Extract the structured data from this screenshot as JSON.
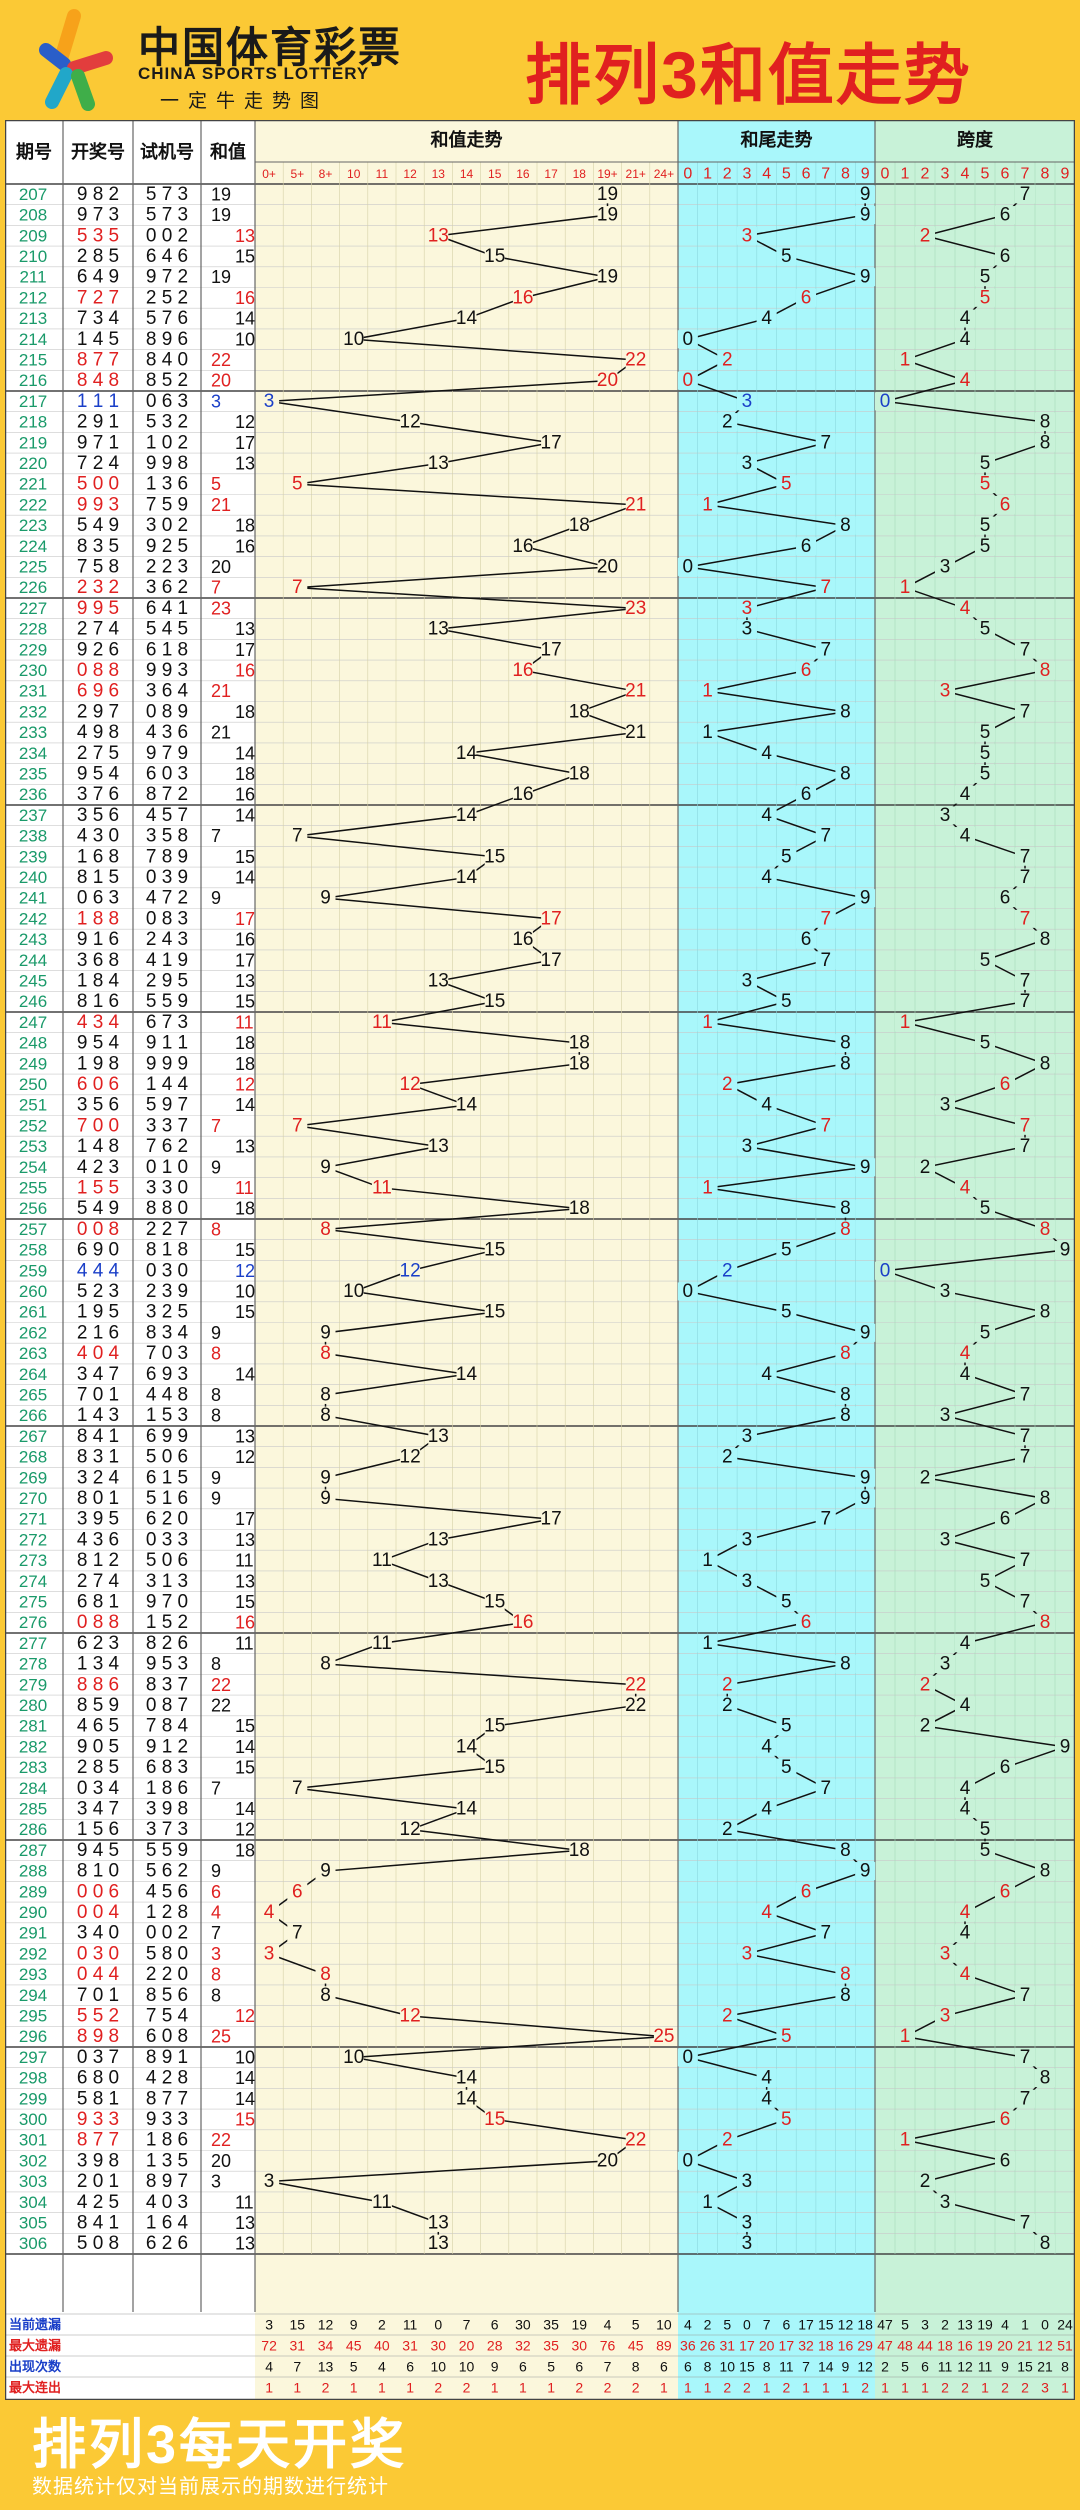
{
  "header": {
    "brand_cn": "中国体育彩票",
    "brand_en": "CHINA SPORTS LOTTERY",
    "brand_sub": "一定牛走势图",
    "title": "排列3和值走势"
  },
  "footer": {
    "title": "排列3每天开奖",
    "note": "数据统计仅对当前展示的期数进行统计"
  },
  "colors": {
    "red": "#e02020",
    "green": "#1a9a6a",
    "blue": "#1a3fc8",
    "header_yellow": "#fbc935",
    "sum_bg": "#fbf7dc",
    "tail_bg": "#a9f7fb",
    "span_bg": "#c8f2d8"
  },
  "chart_data": {
    "type": "table",
    "columns": {
      "period": "期号",
      "draw": "开奖号",
      "test": "试机号",
      "sum": "和值"
    },
    "sections": {
      "sum_trend": "和值走势",
      "tail_trend": "和尾走势",
      "span": "跨度"
    },
    "sum_buckets": [
      "0+",
      "5+",
      "8+",
      "10",
      "11",
      "12",
      "13",
      "14",
      "15",
      "16",
      "17",
      "18",
      "19+",
      "21+",
      "24+"
    ],
    "digits": [
      "0",
      "1",
      "2",
      "3",
      "4",
      "5",
      "6",
      "7",
      "8",
      "9"
    ],
    "rows": [
      [
        "207",
        "982",
        "573",
        "19"
      ],
      [
        "208",
        "973",
        "573",
        "19"
      ],
      [
        "209",
        "535",
        "002",
        "13"
      ],
      [
        "210",
        "285",
        "646",
        "15"
      ],
      [
        "211",
        "649",
        "972",
        "19"
      ],
      [
        "212",
        "727",
        "252",
        "16"
      ],
      [
        "213",
        "734",
        "576",
        "14"
      ],
      [
        "214",
        "145",
        "896",
        "10"
      ],
      [
        "215",
        "877",
        "840",
        "22"
      ],
      [
        "216",
        "848",
        "852",
        "20"
      ],
      [
        "217",
        "111",
        "063",
        "3"
      ],
      [
        "218",
        "291",
        "532",
        "12"
      ],
      [
        "219",
        "971",
        "102",
        "17"
      ],
      [
        "220",
        "724",
        "998",
        "13"
      ],
      [
        "221",
        "500",
        "136",
        "5"
      ],
      [
        "222",
        "993",
        "759",
        "21"
      ],
      [
        "223",
        "549",
        "302",
        "18"
      ],
      [
        "224",
        "835",
        "925",
        "16"
      ],
      [
        "225",
        "758",
        "223",
        "20"
      ],
      [
        "226",
        "232",
        "362",
        "7"
      ],
      [
        "227",
        "995",
        "641",
        "23"
      ],
      [
        "228",
        "274",
        "545",
        "13"
      ],
      [
        "229",
        "926",
        "618",
        "17"
      ],
      [
        "230",
        "088",
        "993",
        "16"
      ],
      [
        "231",
        "696",
        "364",
        "21"
      ],
      [
        "232",
        "297",
        "089",
        "18"
      ],
      [
        "233",
        "498",
        "436",
        "21"
      ],
      [
        "234",
        "275",
        "979",
        "14"
      ],
      [
        "235",
        "954",
        "603",
        "18"
      ],
      [
        "236",
        "376",
        "872",
        "16"
      ],
      [
        "237",
        "356",
        "457",
        "14"
      ],
      [
        "238",
        "430",
        "358",
        "7"
      ],
      [
        "239",
        "168",
        "789",
        "15"
      ],
      [
        "240",
        "815",
        "039",
        "14"
      ],
      [
        "241",
        "063",
        "472",
        "9"
      ],
      [
        "242",
        "188",
        "083",
        "17"
      ],
      [
        "243",
        "916",
        "243",
        "16"
      ],
      [
        "244",
        "368",
        "419",
        "17"
      ],
      [
        "245",
        "184",
        "295",
        "13"
      ],
      [
        "246",
        "816",
        "559",
        "15"
      ],
      [
        "247",
        "434",
        "673",
        "11"
      ],
      [
        "248",
        "954",
        "911",
        "18"
      ],
      [
        "249",
        "198",
        "999",
        "18"
      ],
      [
        "250",
        "606",
        "144",
        "12"
      ],
      [
        "251",
        "356",
        "597",
        "14"
      ],
      [
        "252",
        "700",
        "337",
        "7"
      ],
      [
        "253",
        "148",
        "762",
        "13"
      ],
      [
        "254",
        "423",
        "010",
        "9"
      ],
      [
        "255",
        "155",
        "330",
        "11"
      ],
      [
        "256",
        "549",
        "880",
        "18"
      ],
      [
        "257",
        "008",
        "227",
        "8"
      ],
      [
        "258",
        "690",
        "818",
        "15"
      ],
      [
        "259",
        "444",
        "030",
        "12"
      ],
      [
        "260",
        "523",
        "239",
        "10"
      ],
      [
        "261",
        "195",
        "325",
        "15"
      ],
      [
        "262",
        "216",
        "834",
        "9"
      ],
      [
        "263",
        "404",
        "703",
        "8"
      ],
      [
        "264",
        "347",
        "693",
        "14"
      ],
      [
        "265",
        "701",
        "448",
        "8"
      ],
      [
        "266",
        "143",
        "153",
        "8"
      ],
      [
        "267",
        "841",
        "699",
        "13"
      ],
      [
        "268",
        "831",
        "506",
        "12"
      ],
      [
        "269",
        "324",
        "615",
        "9"
      ],
      [
        "270",
        "801",
        "516",
        "9"
      ],
      [
        "271",
        "395",
        "620",
        "17"
      ],
      [
        "272",
        "436",
        "033",
        "13"
      ],
      [
        "273",
        "812",
        "506",
        "11"
      ],
      [
        "274",
        "274",
        "313",
        "13"
      ],
      [
        "275",
        "681",
        "970",
        "15"
      ],
      [
        "276",
        "088",
        "152",
        "16"
      ],
      [
        "277",
        "623",
        "826",
        "11"
      ],
      [
        "278",
        "134",
        "953",
        "8"
      ],
      [
        "279",
        "886",
        "837",
        "22"
      ],
      [
        "280",
        "859",
        "087",
        "22"
      ],
      [
        "281",
        "465",
        "784",
        "15"
      ],
      [
        "282",
        "905",
        "912",
        "14"
      ],
      [
        "283",
        "285",
        "683",
        "15"
      ],
      [
        "284",
        "034",
        "186",
        "7"
      ],
      [
        "285",
        "347",
        "398",
        "14"
      ],
      [
        "286",
        "156",
        "373",
        "12"
      ],
      [
        "287",
        "945",
        "559",
        "18"
      ],
      [
        "288",
        "810",
        "562",
        "9"
      ],
      [
        "289",
        "006",
        "456",
        "6"
      ],
      [
        "290",
        "004",
        "128",
        "4"
      ],
      [
        "291",
        "340",
        "002",
        "7"
      ],
      [
        "292",
        "030",
        "580",
        "3"
      ],
      [
        "293",
        "044",
        "220",
        "8"
      ],
      [
        "294",
        "701",
        "856",
        "8"
      ],
      [
        "295",
        "552",
        "754",
        "12"
      ],
      [
        "296",
        "898",
        "608",
        "25"
      ],
      [
        "297",
        "037",
        "891",
        "10"
      ],
      [
        "298",
        "680",
        "428",
        "14"
      ],
      [
        "299",
        "581",
        "877",
        "14"
      ],
      [
        "300",
        "933",
        "933",
        "15"
      ],
      [
        "301",
        "877",
        "186",
        "22"
      ],
      [
        "302",
        "398",
        "135",
        "20"
      ],
      [
        "303",
        "201",
        "897",
        "3"
      ],
      [
        "304",
        "425",
        "403",
        "11"
      ],
      [
        "305",
        "841",
        "164",
        "13"
      ],
      [
        "306",
        "508",
        "626",
        "13"
      ]
    ],
    "stats": {
      "labels": [
        "当前遗漏",
        "最大遗漏",
        "出现次数",
        "最大连出"
      ],
      "sum_rows": [
        [
          "3",
          "15",
          "12",
          "9",
          "2",
          "11",
          "0",
          "7",
          "6",
          "30",
          "35",
          "19",
          "4",
          "5",
          "10"
        ],
        [
          "72",
          "31",
          "34",
          "45",
          "40",
          "31",
          "30",
          "20",
          "28",
          "32",
          "35",
          "30",
          "76",
          "45",
          "89"
        ],
        [
          "4",
          "7",
          "13",
          "5",
          "4",
          "6",
          "10",
          "10",
          "9",
          "6",
          "5",
          "6",
          "7",
          "8",
          "6"
        ],
        [
          "1",
          "1",
          "2",
          "1",
          "1",
          "1",
          "2",
          "2",
          "1",
          "1",
          "1",
          "2",
          "2",
          "2",
          "1"
        ]
      ],
      "tail_rows": [
        [
          "4",
          "2",
          "5",
          "0",
          "7",
          "6",
          "17",
          "15",
          "12",
          "18"
        ],
        [
          "36",
          "26",
          "31",
          "17",
          "20",
          "17",
          "32",
          "18",
          "16",
          "29"
        ],
        [
          "6",
          "8",
          "10",
          "15",
          "8",
          "11",
          "7",
          "14",
          "9",
          "12"
        ],
        [
          "1",
          "1",
          "2",
          "2",
          "1",
          "2",
          "1",
          "1",
          "1",
          "2"
        ]
      ],
      "span_rows": [
        [
          "47",
          "5",
          "3",
          "2",
          "13",
          "19",
          "4",
          "1",
          "0",
          "24"
        ],
        [
          "47",
          "48",
          "44",
          "18",
          "16",
          "19",
          "20",
          "21",
          "12",
          "51"
        ],
        [
          "2",
          "5",
          "6",
          "11",
          "12",
          "11",
          "9",
          "15",
          "21",
          "8"
        ],
        [
          "1",
          "1",
          "1",
          "2",
          "2",
          "1",
          "2",
          "2",
          "3",
          "1"
        ]
      ]
    }
  }
}
